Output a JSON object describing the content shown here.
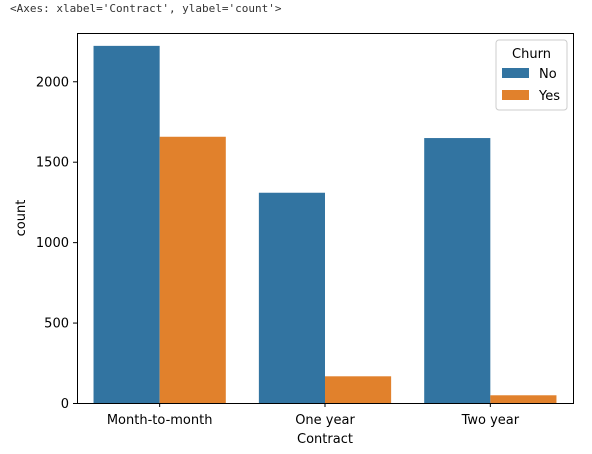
{
  "repr_text": "<Axes: xlabel='Contract', ylabel='count'>",
  "chart_data": {
    "type": "bar",
    "title": "",
    "xlabel": "Contract",
    "ylabel": "count",
    "categories": [
      "Month-to-month",
      "One year",
      "Two year"
    ],
    "series": [
      {
        "name": "No",
        "color": "#3274a1",
        "values": [
          2220,
          1307,
          1647
        ]
      },
      {
        "name": "Yes",
        "color": "#e1812c",
        "values": [
          1655,
          166,
          48
        ]
      }
    ],
    "ylim": [
      0,
      2300
    ],
    "yticks": [
      0,
      500,
      1000,
      1500,
      2000
    ],
    "grid": false,
    "legend": {
      "title": "Churn",
      "placement": "top-right"
    }
  }
}
